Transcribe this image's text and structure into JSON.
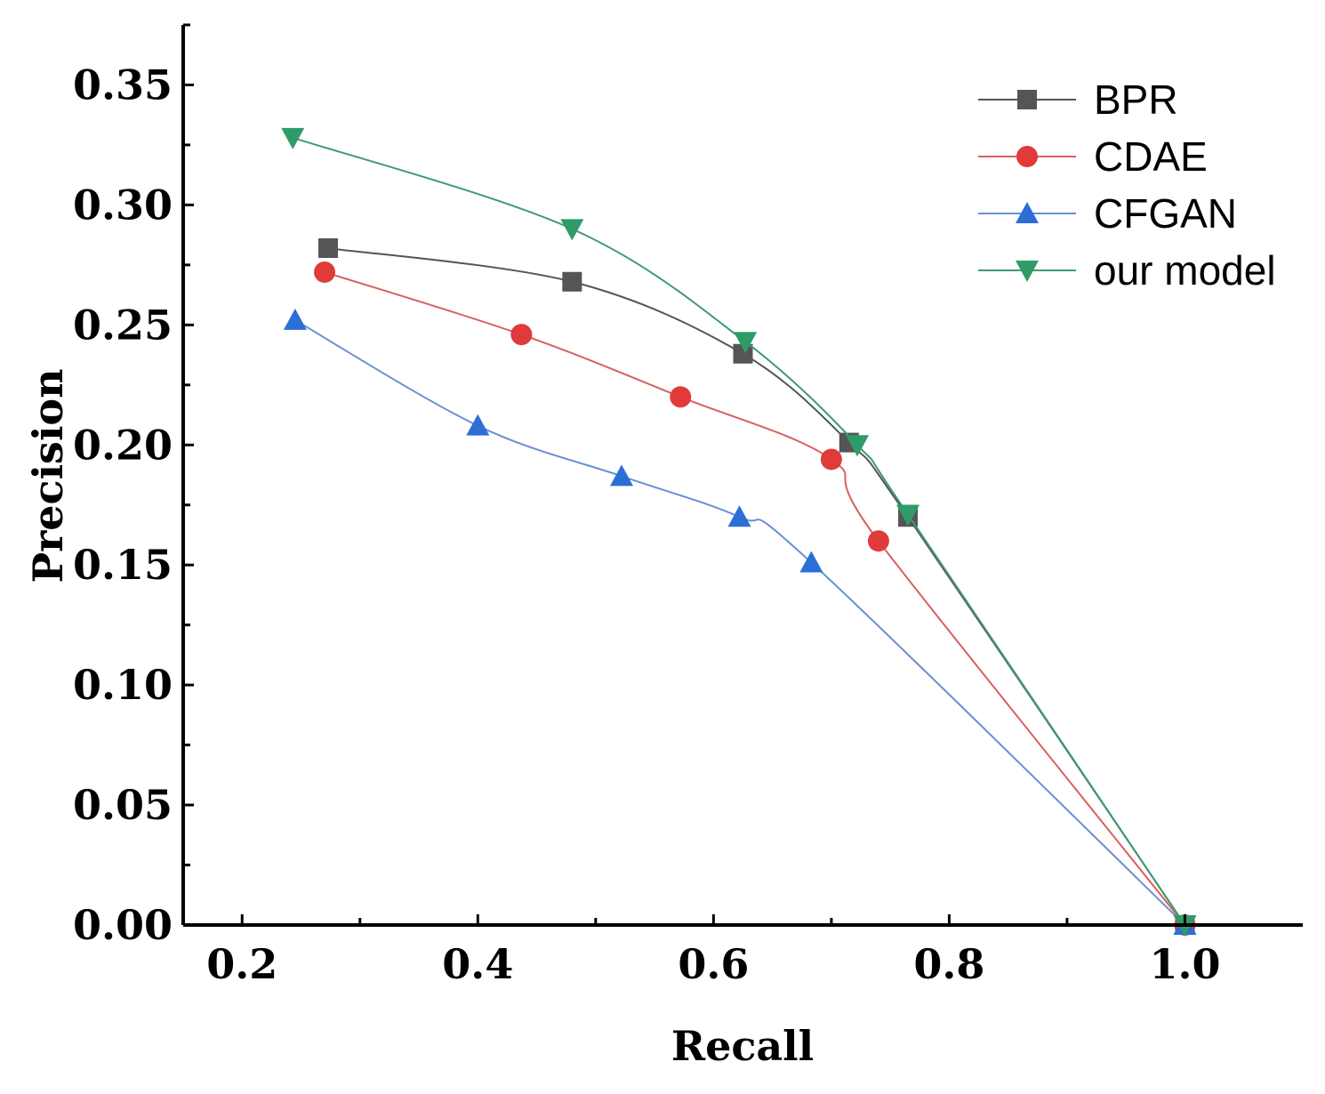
{
  "chart_data": {
    "type": "line",
    "title": "",
    "xlabel": "Recall",
    "ylabel": "Precision",
    "xlim": [
      0.15,
      1.1
    ],
    "ylim": [
      0.0,
      0.375
    ],
    "xticks": [
      0.2,
      0.4,
      0.6,
      0.8,
      1.0
    ],
    "xtick_labels": [
      "0.2",
      "0.4",
      "0.6",
      "0.8",
      "1.0"
    ],
    "yticks": [
      0.0,
      0.05,
      0.1,
      0.15,
      0.2,
      0.25,
      0.3,
      0.35
    ],
    "ytick_labels": [
      "0.00",
      "0.05",
      "0.10",
      "0.15",
      "0.20",
      "0.25",
      "0.30",
      "0.35"
    ],
    "grid": false,
    "legend_position": "top-right",
    "series": [
      {
        "name": "BPR",
        "marker": "square",
        "color": "#555555",
        "marker_color": "#555555",
        "x": [
          0.273,
          0.48,
          0.625,
          0.715,
          0.765,
          1.0
        ],
        "y": [
          0.282,
          0.268,
          0.238,
          0.201,
          0.17,
          0.0
        ]
      },
      {
        "name": "CDAE",
        "marker": "circle",
        "color": "#d86060",
        "marker_color": "#e03a3a",
        "x": [
          0.27,
          0.437,
          0.572,
          0.7,
          0.74,
          1.0
        ],
        "y": [
          0.272,
          0.246,
          0.22,
          0.194,
          0.16,
          0.0
        ]
      },
      {
        "name": "CFGAN",
        "marker": "triangle-up",
        "color": "#6b8fd1",
        "marker_color": "#2b6fd6",
        "x": [
          0.245,
          0.4,
          0.522,
          0.622,
          0.683,
          1.0
        ],
        "y": [
          0.252,
          0.208,
          0.187,
          0.17,
          0.151,
          0.0
        ]
      },
      {
        "name": "our model",
        "marker": "triangle-down",
        "color": "#3f9a77",
        "marker_color": "#2f9b68",
        "x": [
          0.243,
          0.48,
          0.627,
          0.722,
          0.765,
          1.0
        ],
        "y": [
          0.328,
          0.29,
          0.243,
          0.2,
          0.171,
          0.0
        ]
      }
    ]
  }
}
